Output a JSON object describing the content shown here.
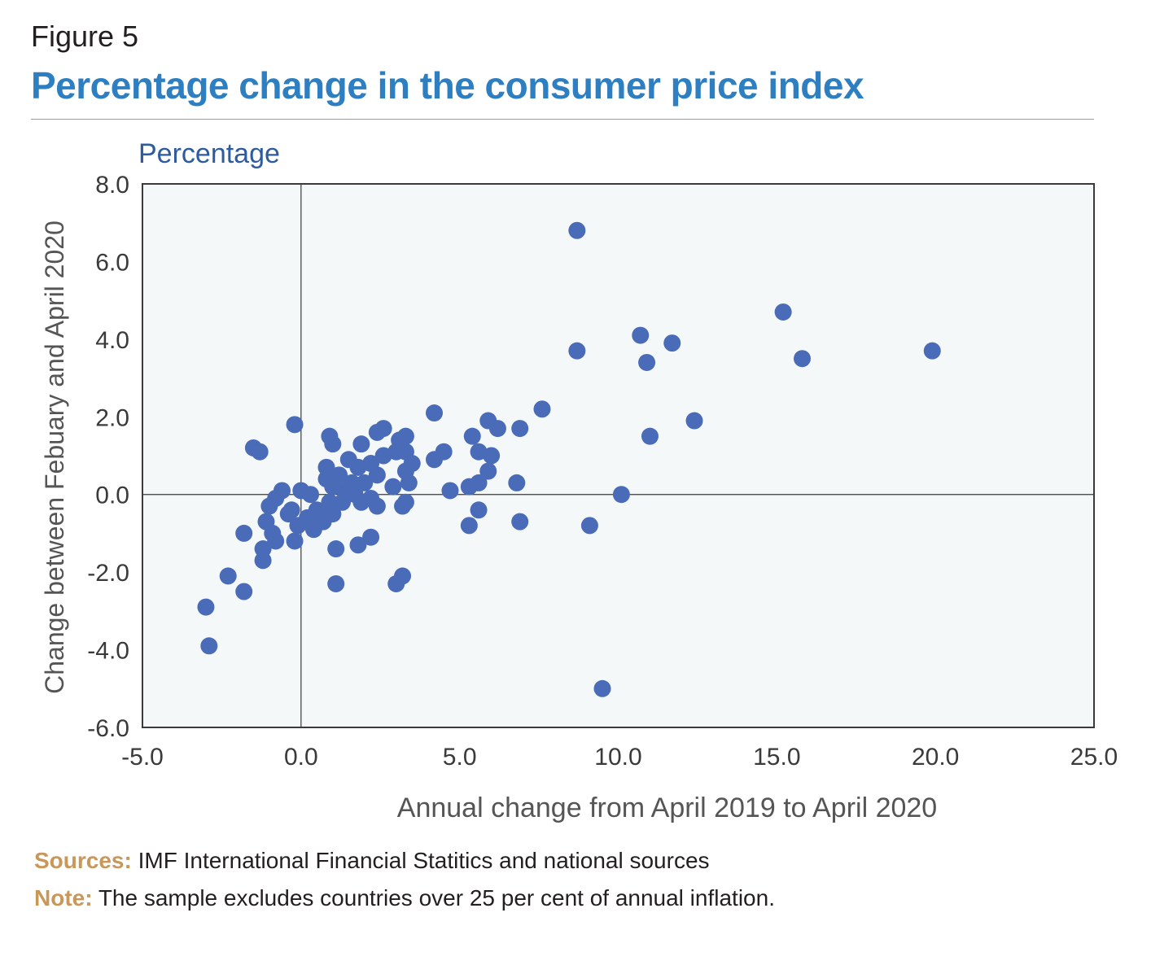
{
  "figure_label": "Figure 5",
  "figure_title": "Percentage change in the consumer price index",
  "colors": {
    "title": "#2e7fc1",
    "points": "#4a6bb8",
    "plot_bg": "#f4f8f9",
    "footnote_key": "#c8975a"
  },
  "footnotes": {
    "sources_key": "Sources:",
    "sources_text": " IMF International Financial Statitics and national sources",
    "note_key": "Note:",
    "note_text": " The sample excludes countries over 25 per cent of annual inflation."
  },
  "chart_data": {
    "type": "scatter",
    "title": "Percentage change in the consumer price index",
    "unit_label": "Percentage",
    "xlabel": "Annual change from April 2019 to April 2020",
    "ylabel": "Change between Febuary and April 2020",
    "xlim": [
      -5,
      25
    ],
    "ylim": [
      -6,
      8
    ],
    "x_ticks": [
      -5,
      0,
      5,
      10,
      15,
      20,
      25
    ],
    "x_tick_labels": [
      "-5.0",
      "0.0",
      "5.0",
      "10.0",
      "15.0",
      "20.0",
      "25.0"
    ],
    "y_ticks": [
      -6,
      -4,
      -2,
      0,
      2,
      4,
      6,
      8
    ],
    "y_tick_labels": [
      "-6.0",
      "-4.0",
      "-2.0",
      "0.0",
      "2.0",
      "4.0",
      "6.0",
      "8.0"
    ],
    "grid": false,
    "points": [
      [
        8.7,
        6.8
      ],
      [
        15.2,
        4.7
      ],
      [
        10.7,
        4.1
      ],
      [
        11.7,
        3.9
      ],
      [
        8.7,
        3.7
      ],
      [
        19.9,
        3.7
      ],
      [
        15.8,
        3.5
      ],
      [
        10.9,
        3.4
      ],
      [
        7.6,
        2.2
      ],
      [
        4.2,
        2.1
      ],
      [
        12.4,
        1.9
      ],
      [
        5.9,
        1.9
      ],
      [
        6.2,
        1.7
      ],
      [
        6.9,
        1.7
      ],
      [
        -0.2,
        1.8
      ],
      [
        2.6,
        1.7
      ],
      [
        2.4,
        1.6
      ],
      [
        3.3,
        1.5
      ],
      [
        0.9,
        1.5
      ],
      [
        5.4,
        1.5
      ],
      [
        11.0,
        1.5
      ],
      [
        3.1,
        1.4
      ],
      [
        1.0,
        1.3
      ],
      [
        1.9,
        1.3
      ],
      [
        -1.5,
        1.2
      ],
      [
        -1.3,
        1.1
      ],
      [
        3.0,
        1.1
      ],
      [
        3.3,
        1.1
      ],
      [
        2.6,
        1.0
      ],
      [
        4.5,
        1.1
      ],
      [
        5.6,
        1.1
      ],
      [
        6.0,
        1.0
      ],
      [
        4.2,
        0.9
      ],
      [
        1.5,
        0.9
      ],
      [
        2.2,
        0.8
      ],
      [
        0.8,
        0.7
      ],
      [
        3.5,
        0.8
      ],
      [
        1.8,
        0.7
      ],
      [
        3.3,
        0.6
      ],
      [
        1.2,
        0.5
      ],
      [
        5.9,
        0.6
      ],
      [
        2.4,
        0.5
      ],
      [
        0.8,
        0.4
      ],
      [
        6.8,
        0.3
      ],
      [
        3.4,
        0.3
      ],
      [
        5.6,
        0.3
      ],
      [
        5.3,
        0.2
      ],
      [
        2.9,
        0.2
      ],
      [
        1.6,
        0.3
      ],
      [
        2.0,
        0.3
      ],
      [
        1.0,
        0.2
      ],
      [
        4.7,
        0.1
      ],
      [
        -0.6,
        0.1
      ],
      [
        0.0,
        0.1
      ],
      [
        1.4,
        0.1
      ],
      [
        1.7,
        0.0
      ],
      [
        10.1,
        0.0
      ],
      [
        0.3,
        0.0
      ],
      [
        2.2,
        -0.1
      ],
      [
        1.3,
        -0.2
      ],
      [
        -0.8,
        -0.1
      ],
      [
        1.9,
        -0.2
      ],
      [
        3.3,
        -0.2
      ],
      [
        0.9,
        -0.2
      ],
      [
        2.4,
        -0.3
      ],
      [
        -1.0,
        -0.3
      ],
      [
        3.2,
        -0.3
      ],
      [
        0.5,
        -0.4
      ],
      [
        -0.3,
        -0.4
      ],
      [
        1.0,
        -0.5
      ],
      [
        5.6,
        -0.4
      ],
      [
        -0.4,
        -0.5
      ],
      [
        0.2,
        -0.6
      ],
      [
        -1.1,
        -0.7
      ],
      [
        6.9,
        -0.7
      ],
      [
        0.7,
        -0.7
      ],
      [
        -0.1,
        -0.8
      ],
      [
        5.3,
        -0.8
      ],
      [
        9.1,
        -0.8
      ],
      [
        0.4,
        -0.9
      ],
      [
        -0.9,
        -1.0
      ],
      [
        -1.8,
        -1.0
      ],
      [
        2.2,
        -1.1
      ],
      [
        -0.8,
        -1.2
      ],
      [
        -0.2,
        -1.2
      ],
      [
        1.8,
        -1.3
      ],
      [
        1.1,
        -1.4
      ],
      [
        -1.2,
        -1.4
      ],
      [
        -1.2,
        -1.7
      ],
      [
        -2.3,
        -2.1
      ],
      [
        3.2,
        -2.1
      ],
      [
        3.0,
        -2.3
      ],
      [
        1.1,
        -2.3
      ],
      [
        -1.8,
        -2.5
      ],
      [
        -3.0,
        -2.9
      ],
      [
        -2.9,
        -3.9
      ],
      [
        9.5,
        -5.0
      ]
    ]
  }
}
